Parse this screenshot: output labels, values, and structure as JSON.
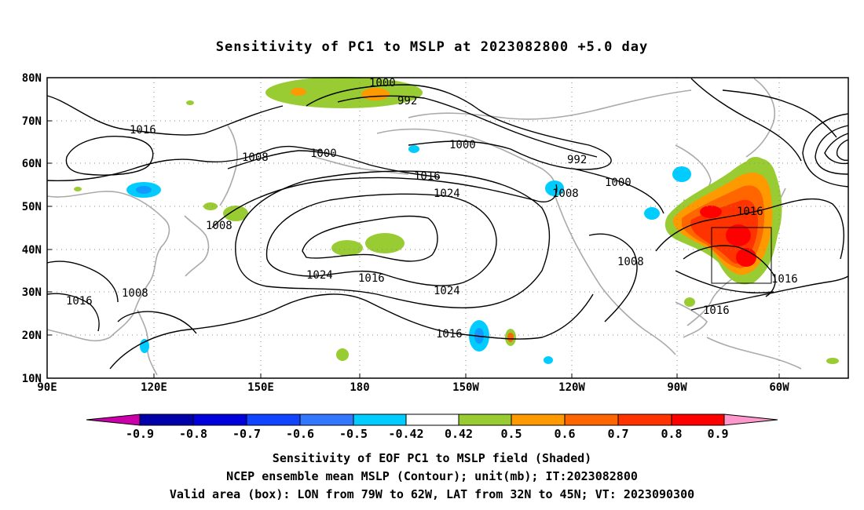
{
  "title": "Sensitivity of PC1 to MSLP at 2023082800 +5.0 day",
  "map": {
    "lat_labels": [
      "80N",
      "70N",
      "60N",
      "50N",
      "40N",
      "30N",
      "20N",
      "10N"
    ],
    "lon_labels": [
      "90E",
      "120E",
      "150E",
      "180",
      "150W",
      "120W",
      "90W",
      "60W"
    ],
    "contour_labels": [
      "1000",
      "992",
      "1016",
      "1008",
      "1000",
      "1000",
      "992",
      "1016",
      "1024",
      "1008",
      "1000",
      "1008",
      "1016",
      "1024",
      "1016",
      "1008",
      "1024",
      "1016",
      "1008",
      "1016",
      "1016",
      "1016"
    ],
    "valid_box": {
      "lon_from": "79W",
      "lon_to": "62W",
      "lat_from": "32N",
      "lat_to": "45N"
    }
  },
  "colorbar": {
    "labels": [
      "-0.9",
      "-0.8",
      "-0.7",
      "-0.6",
      "-0.5",
      "-0.42",
      "0.42",
      "0.5",
      "0.6",
      "0.7",
      "0.8",
      "0.9"
    ],
    "colors": [
      "#cc00aa",
      "#0000aa",
      "#0000dd",
      "#1144ff",
      "#3377ff",
      "#1199ff",
      "#00ccff",
      "#ffffff",
      "#99cc33",
      "#ff9900",
      "#ff6600",
      "#ff3300",
      "#ff0000",
      "#ff99cc"
    ]
  },
  "captions": {
    "line1": "Sensitivity of EOF PC1 to MSLP field (Shaded)",
    "line2": "NCEP ensemble mean MSLP (Contour); unit(mb); IT:2023082800",
    "line3": "Valid area (box): LON from 79W to 62W, LAT from 32N to 45N; VT: 2023090300"
  }
}
